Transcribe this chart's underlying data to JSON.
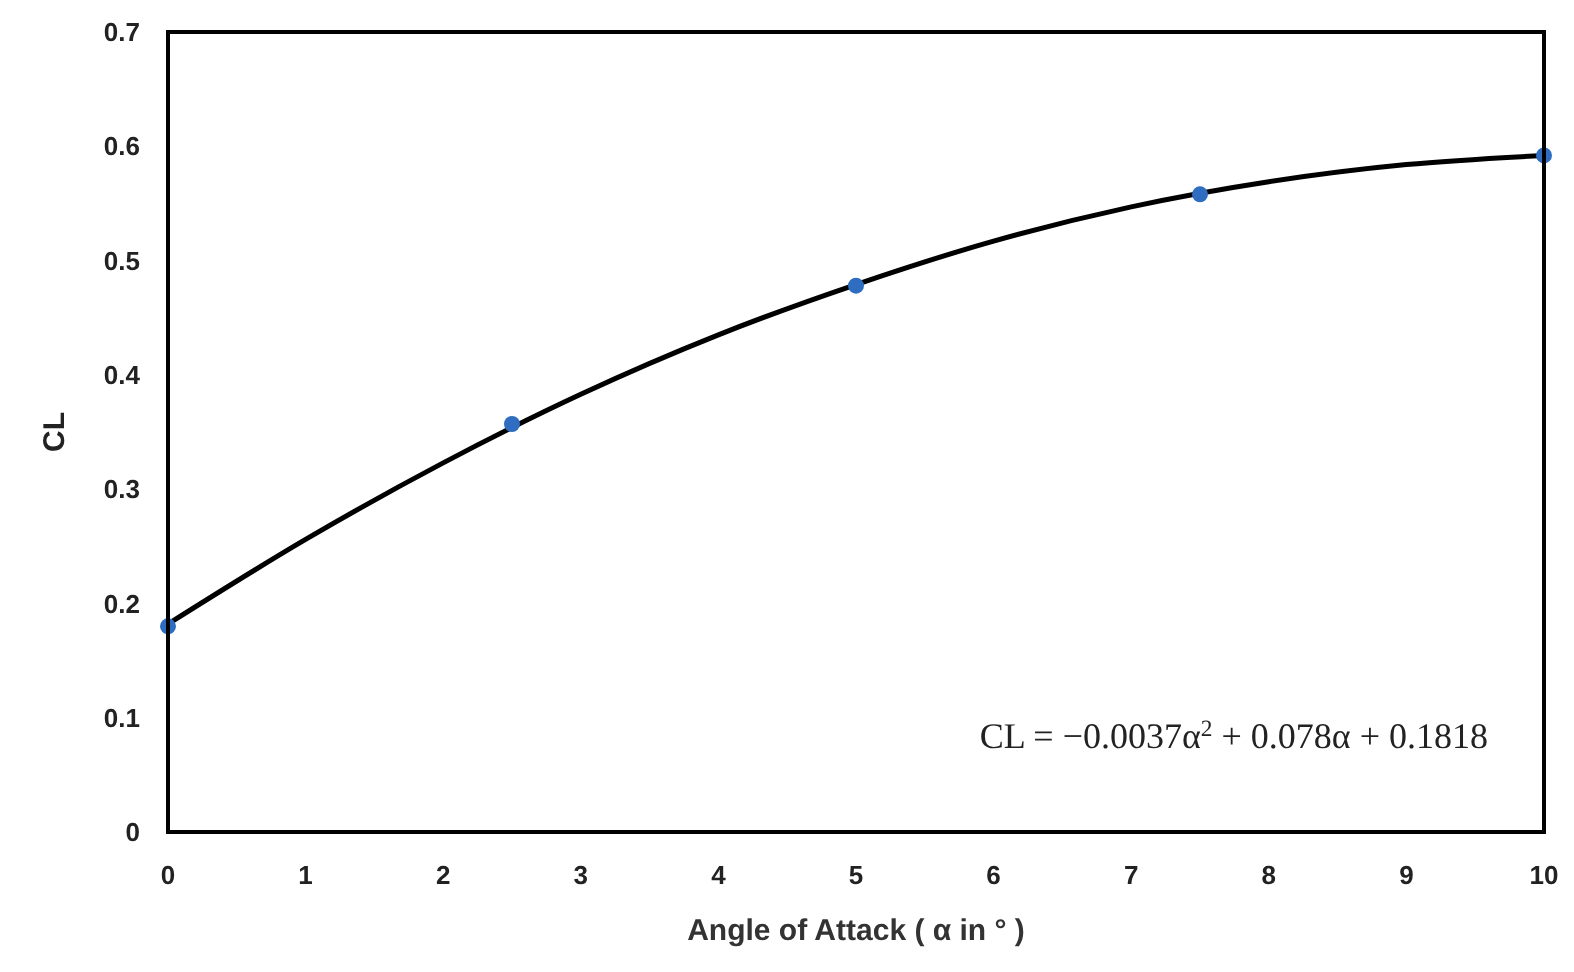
{
  "chart_data": {
    "type": "scatter",
    "xlabel": "Angle of Attack ( α in ° )",
    "ylabel": "CL",
    "x": [
      0,
      2.5,
      5,
      7.5,
      10
    ],
    "xlim": [
      0,
      10
    ],
    "xticks": [
      0,
      1,
      2,
      3,
      4,
      5,
      6,
      7,
      8,
      9,
      10
    ],
    "ylim": [
      0,
      0.7
    ],
    "yticks": [
      0,
      0.1,
      0.2,
      0.3,
      0.4,
      0.5,
      0.6,
      0.7
    ],
    "grid": false,
    "series": [
      {
        "color": "#2e6dc0",
        "marker": "circle",
        "values": [
          0.18,
          0.357,
          0.478,
          0.558,
          0.592
        ]
      },
      {
        "type": "line",
        "color": "#000000",
        "marker": "none",
        "x": [
          0,
          1,
          2,
          3,
          4,
          5,
          6,
          7,
          8,
          9,
          10
        ],
        "values": [
          0.182,
          0.256,
          0.323,
          0.383,
          0.435,
          0.479,
          0.517,
          0.547,
          0.569,
          0.584,
          0.592
        ]
      }
    ],
    "annotations": [
      "CL =  −0.0037α$^{2}$ + 0.078α + 0.1818"
    ]
  }
}
